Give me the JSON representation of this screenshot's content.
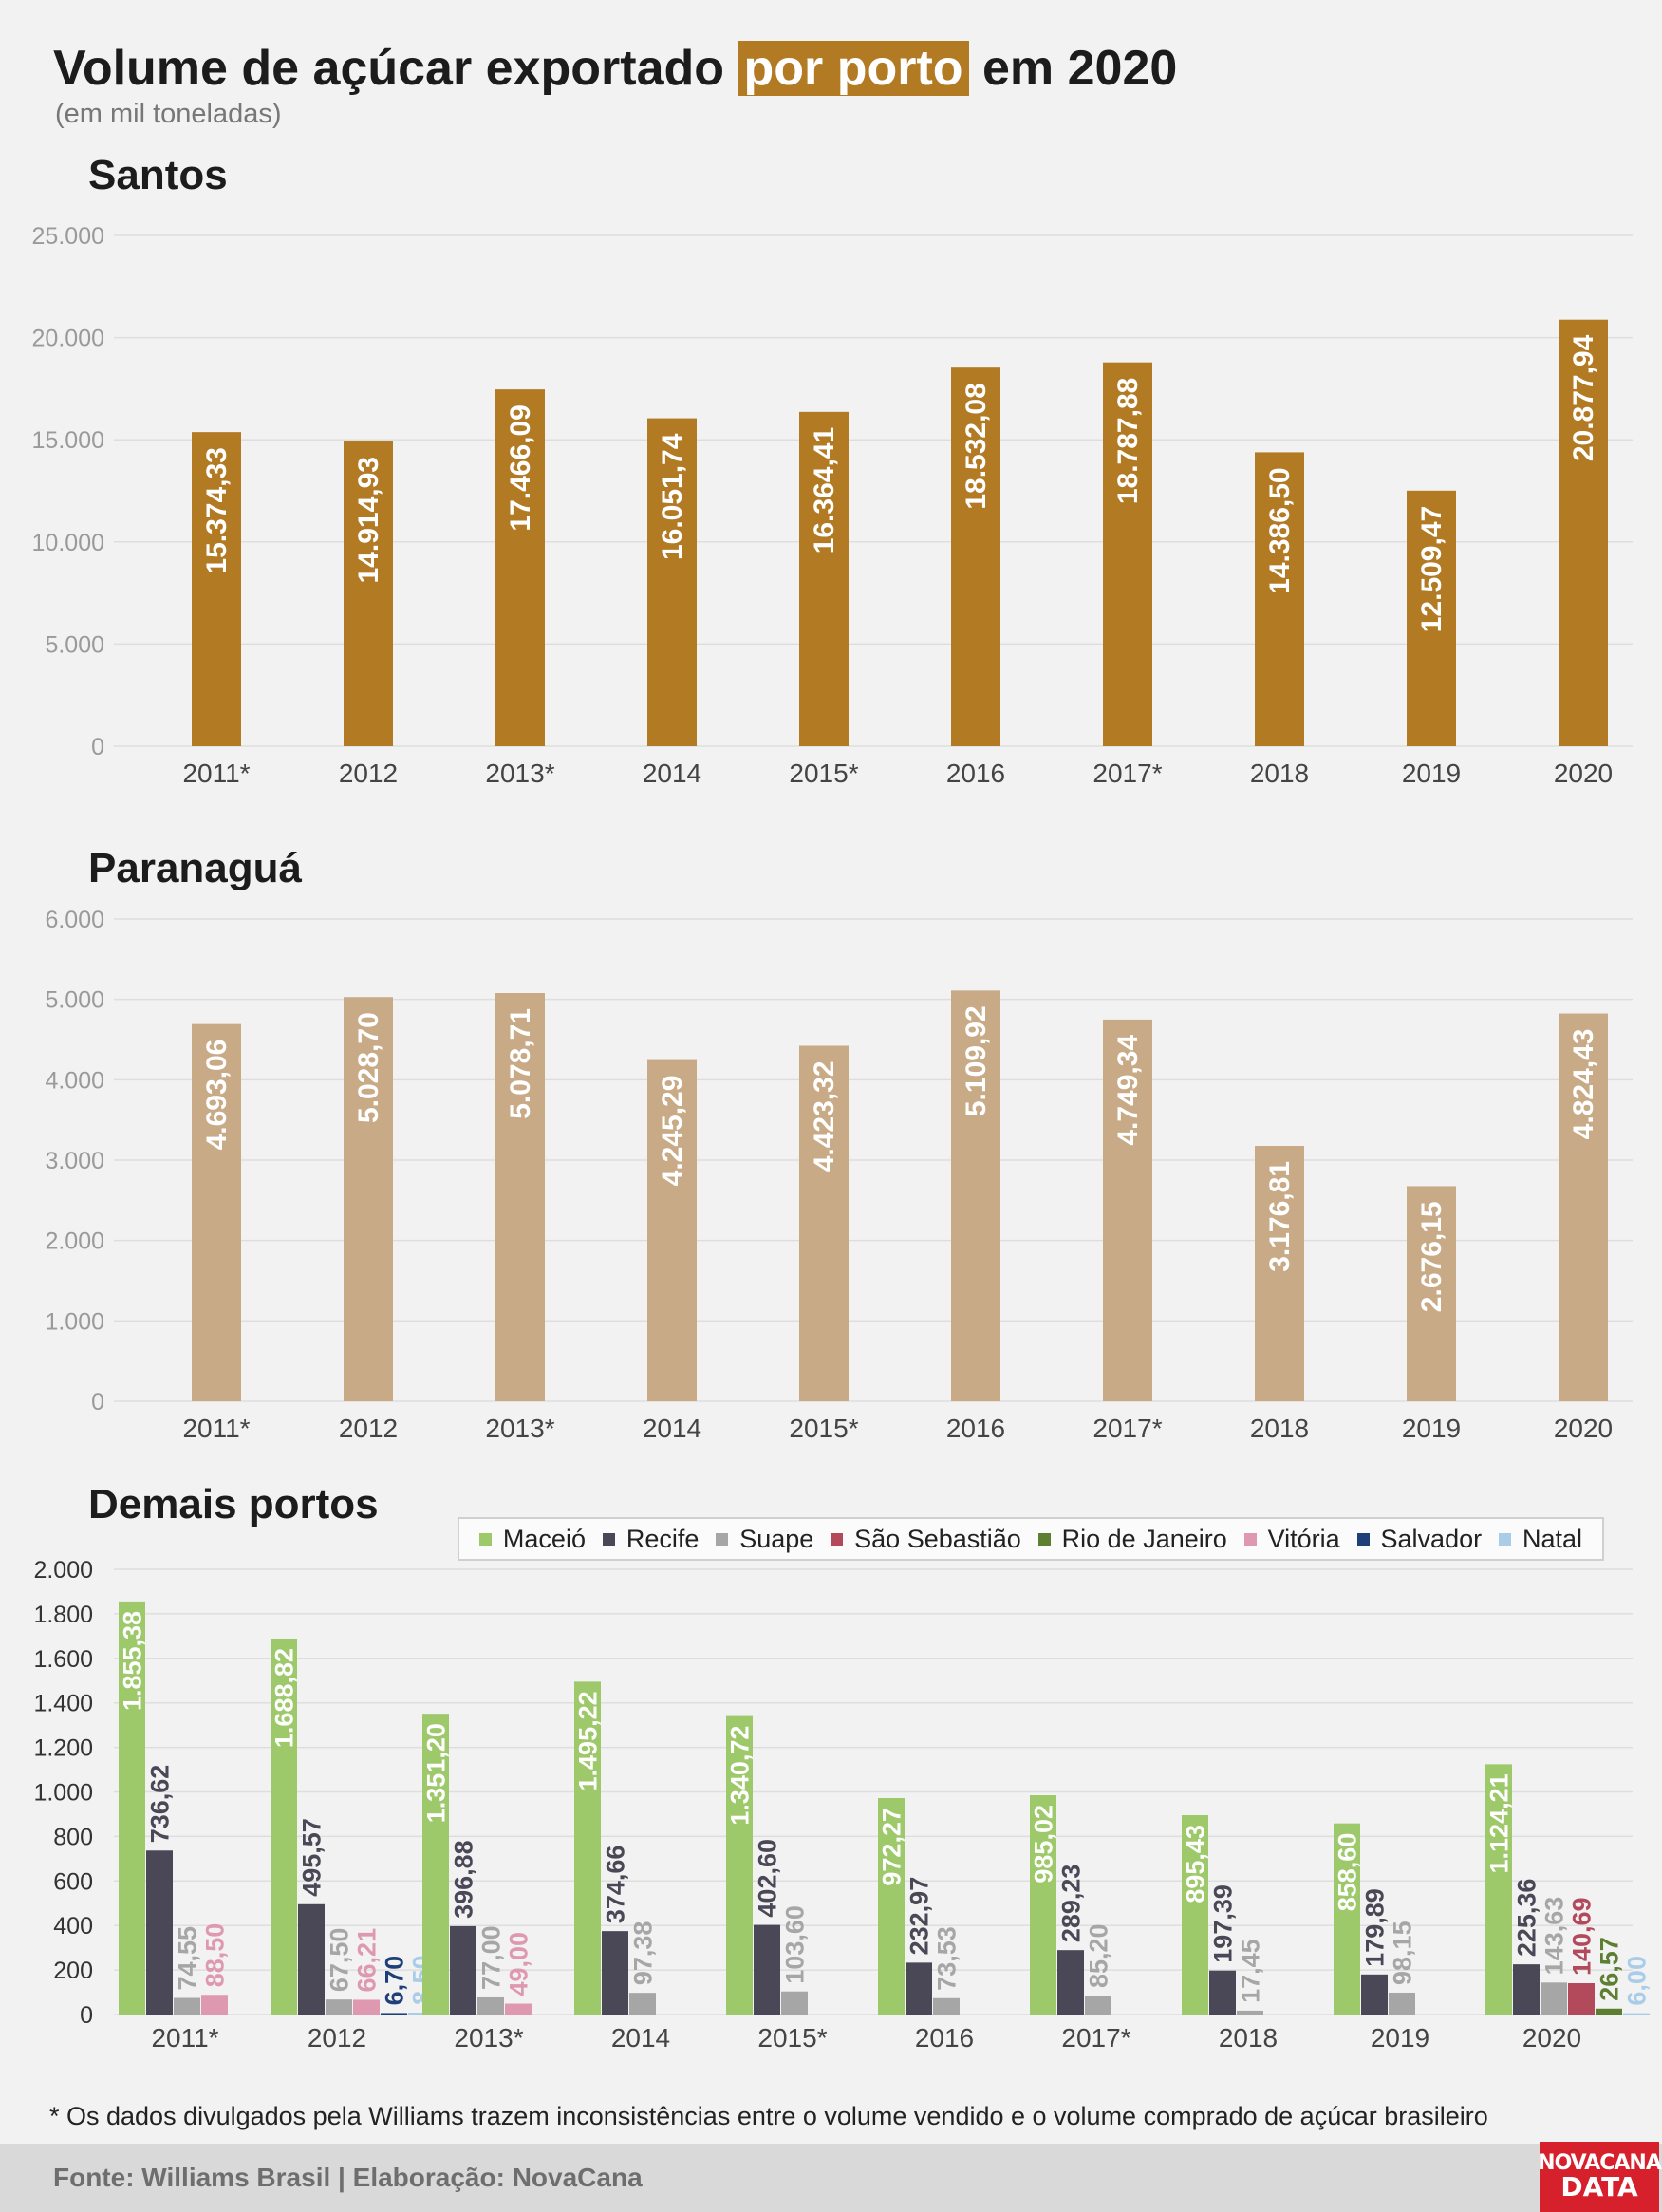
{
  "header": {
    "title_pre": "Volume de açúcar exportado ",
    "title_highlight": "por porto",
    "title_post": " em 2020",
    "subtitle": "(em mil toneladas)"
  },
  "colors": {
    "santos": "#b37a24",
    "paranagua": "#c9aa86",
    "highlight": "#b37a24"
  },
  "chart_data": [
    {
      "type": "bar",
      "title": "Santos",
      "categories": [
        "2011*",
        "2012",
        "2013*",
        "2014",
        "2015*",
        "2016",
        "2017*",
        "2018",
        "2019",
        "2020"
      ],
      "values": [
        15374.33,
        14914.93,
        17466.09,
        16051.74,
        16364.41,
        18532.08,
        18787.88,
        14386.5,
        12509.47,
        20877.94
      ],
      "value_labels": [
        "15.374,33",
        "14.914,93",
        "17.466,09",
        "16.051,74",
        "16.364,41",
        "18.532,08",
        "18.787,88",
        "14.386,50",
        "12.509,47",
        "20.877,94"
      ],
      "ylim": [
        0,
        25000
      ],
      "yticks": [
        0,
        5000,
        10000,
        15000,
        20000,
        25000
      ],
      "ytick_labels": [
        "0",
        "5.000",
        "10.000",
        "15.000",
        "20.000",
        "25.000"
      ],
      "grid": true
    },
    {
      "type": "bar",
      "title": "Paranaguá",
      "categories": [
        "2011*",
        "2012",
        "2013*",
        "2014",
        "2015*",
        "2016",
        "2017*",
        "2018",
        "2019",
        "2020"
      ],
      "values": [
        4693.06,
        5028.7,
        5078.71,
        4245.29,
        4423.32,
        5109.92,
        4749.34,
        3176.81,
        2676.15,
        4824.43
      ],
      "value_labels": [
        "4.693,06",
        "5.028,70",
        "5.078,71",
        "4.245,29",
        "4.423,32",
        "5.109,92",
        "4.749,34",
        "3.176,81",
        "2.676,15",
        "4.824,43"
      ],
      "ylim": [
        0,
        6000
      ],
      "yticks": [
        0,
        1000,
        2000,
        3000,
        4000,
        5000,
        6000
      ],
      "ytick_labels": [
        "0",
        "1.000",
        "2.000",
        "3.000",
        "4.000",
        "5.000",
        "6.000"
      ],
      "grid": true
    },
    {
      "type": "bar",
      "title": "Demais portos",
      "categories": [
        "2011*",
        "2012",
        "2013*",
        "2014",
        "2015*",
        "2016",
        "2017*",
        "2018",
        "2019",
        "2020"
      ],
      "legend_position": "top-right",
      "ylim": [
        0,
        2000
      ],
      "yticks": [
        0,
        200,
        400,
        600,
        800,
        1000,
        1200,
        1400,
        1600,
        1800,
        2000
      ],
      "ytick_labels": [
        "0",
        "200",
        "400",
        "600",
        "800",
        "1.000",
        "1.200",
        "1.400",
        "1.600",
        "1.800",
        "2.000"
      ],
      "grid": true,
      "series": [
        {
          "name": "Maceió",
          "color": "#9dc96b",
          "values": [
            1855.38,
            1688.82,
            1351.2,
            1495.22,
            1340.72,
            972.27,
            985.02,
            895.43,
            858.6,
            1124.21
          ],
          "labels": [
            "1.855,38",
            "1.688,82",
            "1.351,20",
            "1.495,22",
            "1.340,72",
            "972,27",
            "985,02",
            "895,43",
            "858,60",
            "1.124,21"
          ]
        },
        {
          "name": "Recife",
          "color": "#4a4756",
          "values": [
            736.62,
            495.57,
            396.88,
            374.66,
            402.6,
            232.97,
            289.23,
            197.39,
            179.89,
            225.36
          ],
          "labels": [
            "736,62",
            "495,57",
            "396,88",
            "374,66",
            "402,60",
            "232,97",
            "289,23",
            "197,39",
            "179,89",
            "225,36"
          ]
        },
        {
          "name": "Suape",
          "color": "#a6a6a6",
          "values": [
            74.55,
            67.5,
            77.0,
            97.38,
            103.6,
            73.53,
            85.2,
            17.45,
            98.15,
            143.63
          ],
          "labels": [
            "74,55",
            "67,50",
            "77,00",
            "97,38",
            "103,60",
            "73,53",
            "85,20",
            "17,45",
            "98,15",
            "143,63"
          ]
        },
        {
          "name": "São Sebastião",
          "color": "#b34a5c",
          "values": [
            null,
            null,
            null,
            null,
            null,
            null,
            null,
            null,
            null,
            140.69
          ],
          "labels": [
            null,
            null,
            null,
            null,
            null,
            null,
            null,
            null,
            null,
            "140,69"
          ]
        },
        {
          "name": "Rio de Janeiro",
          "color": "#5c7f32",
          "values": [
            null,
            null,
            null,
            null,
            null,
            null,
            null,
            null,
            null,
            26.57
          ],
          "labels": [
            null,
            null,
            null,
            null,
            null,
            null,
            null,
            null,
            null,
            "26,57"
          ]
        },
        {
          "name": "Vitória",
          "color": "#de99b0",
          "values": [
            88.5,
            66.21,
            49.0,
            null,
            null,
            null,
            null,
            null,
            null,
            null
          ],
          "labels": [
            "88,50",
            "66,21",
            "49,00",
            null,
            null,
            null,
            null,
            null,
            null,
            null
          ]
        },
        {
          "name": "Salvador",
          "color": "#1f3f78",
          "values": [
            null,
            6.7,
            null,
            null,
            null,
            null,
            null,
            null,
            null,
            null
          ],
          "labels": [
            null,
            "6,70",
            null,
            null,
            null,
            null,
            null,
            null,
            null,
            null
          ]
        },
        {
          "name": "Natal",
          "color": "#a9cde8",
          "values": [
            null,
            8.5,
            null,
            null,
            null,
            null,
            null,
            null,
            null,
            6.0
          ],
          "labels": [
            null,
            "8,50",
            null,
            null,
            null,
            null,
            null,
            null,
            null,
            "6,00"
          ]
        }
      ]
    }
  ],
  "footnote": "* Os dados divulgados pela Williams trazem inconsistências entre o volume vendido e o volume comprado de açúcar brasileiro",
  "footer": {
    "source": "Fonte: Williams Brasil | Elaboração: NovaCana",
    "logo_line1": "NOVACANA",
    "logo_line2": "DATA"
  }
}
